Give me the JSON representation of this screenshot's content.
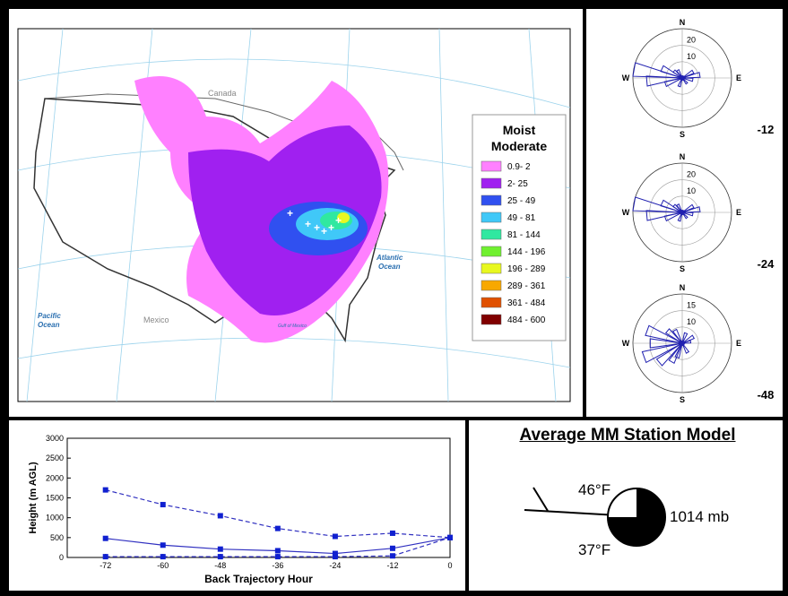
{
  "map": {
    "labels": {
      "canada": "Canada",
      "mexico": "Mexico",
      "pacific": [
        "Pacific",
        "Ocean"
      ],
      "atlantic": [
        "Atlantic",
        "Ocean"
      ],
      "gulf": "Gulf of Mexico"
    },
    "legend": {
      "title_lines": [
        "Moist",
        "Moderate"
      ],
      "entries": [
        {
          "label": "0.9- 2",
          "color": "#ff80ff"
        },
        {
          "label": "2- 25",
          "color": "#a020f0"
        },
        {
          "label": "25 - 49",
          "color": "#3050f0"
        },
        {
          "label": "49 - 81",
          "color": "#40c8f8"
        },
        {
          "label": "81 - 144",
          "color": "#30e8a0"
        },
        {
          "label": "144 - 196",
          "color": "#70f030"
        },
        {
          "label": "196 - 289",
          "color": "#e8f820"
        },
        {
          "label": "289 - 361",
          "color": "#f8a800"
        },
        {
          "label": "361 - 484",
          "color": "#e05000"
        },
        {
          "label": "484 - 600",
          "color": "#800000"
        }
      ]
    }
  },
  "wind_roses": [
    {
      "hour_label": "-12",
      "rings": [
        "10",
        "20"
      ],
      "max": 25
    },
    {
      "hour_label": "-24",
      "rings": [
        "10",
        "20"
      ],
      "max": 25
    },
    {
      "hour_label": "-48",
      "rings": [
        "10",
        "15"
      ],
      "max": 20
    }
  ],
  "compass": {
    "n": "N",
    "e": "E",
    "s": "S",
    "w": "W"
  },
  "chart_data": {
    "type": "line",
    "xlabel": "Back Trajectory Hour",
    "ylabel": "Height (m AGL)",
    "x": [
      -72,
      -60,
      -48,
      -36,
      -24,
      -12,
      0
    ],
    "x_ticks": [
      "-72",
      "-60",
      "-48",
      "-36",
      "-24",
      "-12",
      "0"
    ],
    "y_ticks": [
      "0",
      "500",
      "1000",
      "1500",
      "2000",
      "2500",
      "3000"
    ],
    "xlim": [
      -80,
      0
    ],
    "ylim": [
      0,
      3000
    ],
    "series": [
      {
        "values": [
          1700,
          1330,
          1050,
          730,
          530,
          610,
          500
        ],
        "dash": true,
        "color": "#3030c0"
      },
      {
        "values": [
          480,
          310,
          210,
          170,
          100,
          230,
          500
        ],
        "dash": false,
        "color": "#3030c0"
      },
      {
        "values": [
          20,
          20,
          20,
          20,
          20,
          40,
          500
        ],
        "dash": true,
        "color": "#3030c0"
      }
    ]
  },
  "station": {
    "title": "Average MM Station Model",
    "temp": "46°F",
    "dewpoint": "37°F",
    "pressure": "1014 mb"
  }
}
